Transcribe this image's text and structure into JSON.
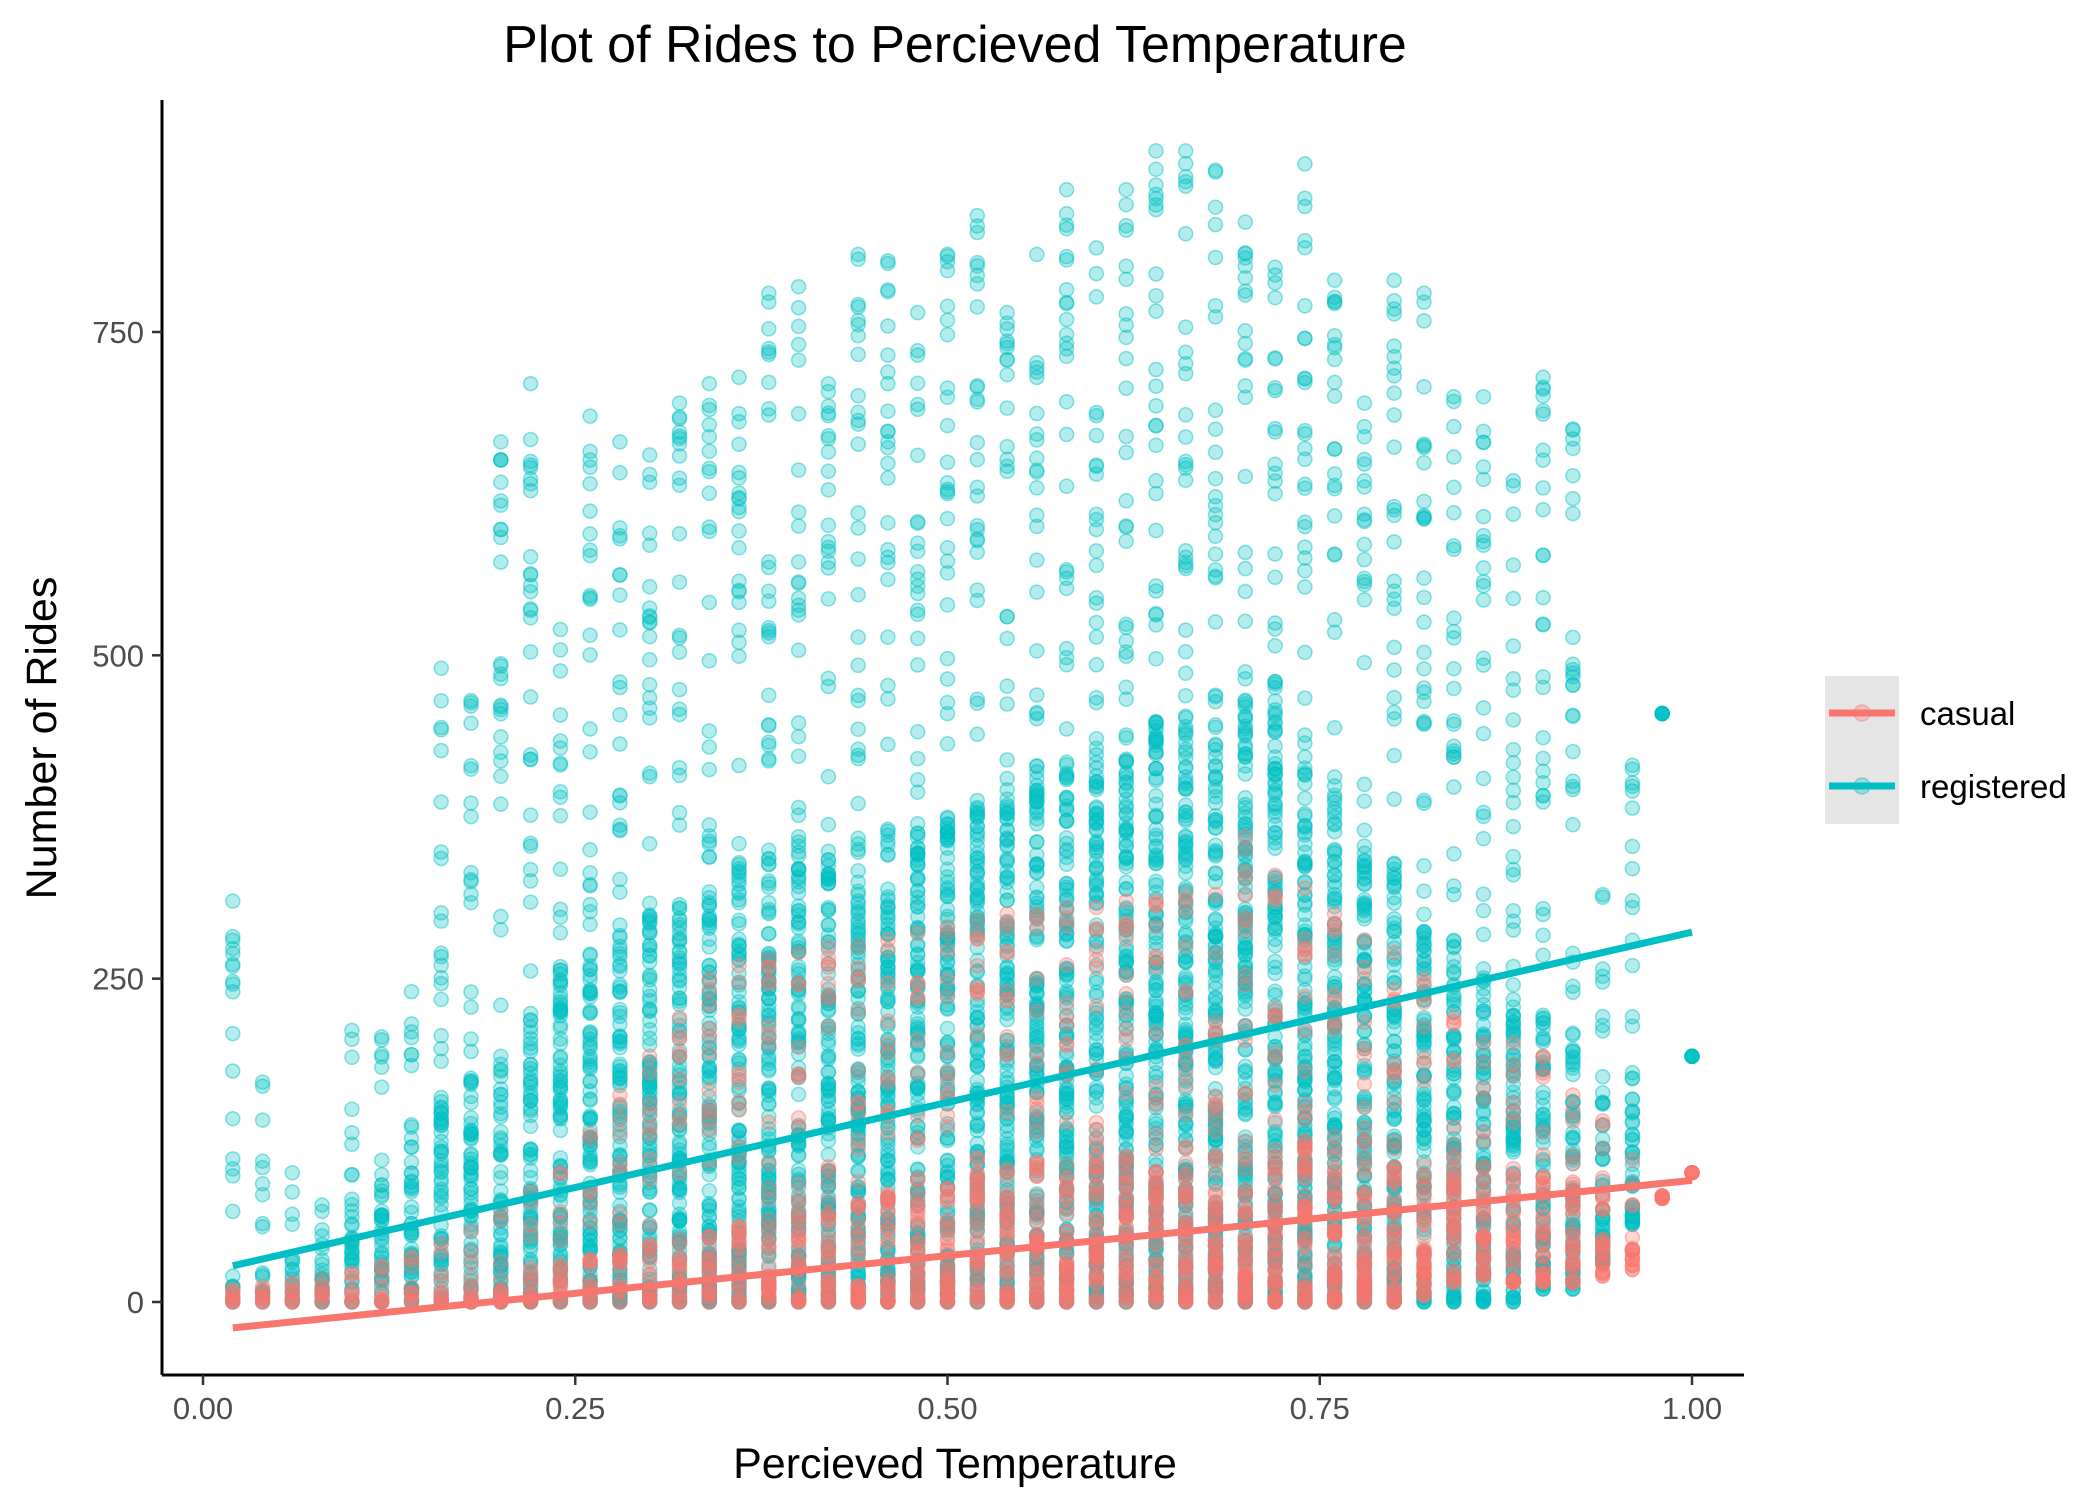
{
  "chart_data": {
    "type": "scatter",
    "title": "Plot of Rides to Percieved Temperature",
    "xlabel": "Percieved Temperature",
    "ylabel": "Number of Rides",
    "xlim": [
      -0.03,
      1.05
    ],
    "ylim": [
      -65,
      895
    ],
    "x_ticks": [
      0.0,
      0.25,
      0.5,
      0.75,
      1.0
    ],
    "x_tick_labels": [
      "0.00",
      "0.25",
      "0.50",
      "0.75",
      "1.00"
    ],
    "y_ticks": [
      0,
      250,
      500,
      750
    ],
    "y_tick_labels": [
      "0",
      "250",
      "500",
      "750"
    ],
    "grid": false,
    "legend_position": "right",
    "point_alpha": 0.3,
    "series": [
      {
        "name": "casual",
        "color": "#F8766D",
        "trend_line": {
          "x": [
            0.02,
            1.0
          ],
          "y": [
            -20,
            94
          ]
        },
        "column_x": [
          0.02,
          0.04,
          0.06,
          0.08,
          0.1,
          0.12,
          0.14,
          0.16,
          0.18,
          0.2,
          0.22,
          0.24,
          0.26,
          0.28,
          0.3,
          0.32,
          0.34,
          0.36,
          0.38,
          0.4,
          0.42,
          0.44,
          0.46,
          0.48,
          0.5,
          0.52,
          0.54,
          0.56,
          0.58,
          0.6,
          0.62,
          0.64,
          0.66,
          0.68,
          0.7,
          0.72,
          0.74,
          0.76,
          0.78,
          0.8,
          0.82,
          0.84,
          0.86,
          0.88,
          0.9,
          0.92,
          0.94,
          0.96,
          0.98,
          1.0
        ],
        "column_min": [
          0,
          0,
          0,
          0,
          0,
          0,
          0,
          0,
          0,
          0,
          0,
          0,
          0,
          0,
          0,
          0,
          0,
          0,
          0,
          0,
          0,
          0,
          0,
          0,
          0,
          0,
          0,
          0,
          0,
          0,
          0,
          0,
          0,
          0,
          0,
          0,
          0,
          0,
          0,
          0,
          5,
          15,
          20,
          15,
          15,
          15,
          20,
          25,
          80,
          100
        ],
        "column_dense_max": [
          5,
          6,
          8,
          10,
          12,
          14,
          16,
          18,
          22,
          26,
          30,
          32,
          36,
          40,
          45,
          50,
          55,
          60,
          65,
          70,
          75,
          80,
          85,
          90,
          95,
          100,
          105,
          110,
          112,
          115,
          118,
          120,
          122,
          124,
          126,
          128,
          130,
          130,
          128,
          125,
          120,
          115,
          110,
          105,
          100,
          95,
          85,
          60,
          82,
          100
        ],
        "column_max": [
          10,
          12,
          15,
          18,
          22,
          28,
          35,
          45,
          55,
          70,
          85,
          100,
          130,
          160,
          190,
          220,
          250,
          260,
          265,
          270,
          275,
          275,
          280,
          285,
          290,
          295,
          300,
          300,
          305,
          305,
          310,
          310,
          315,
          315,
          360,
          330,
          320,
          300,
          280,
          270,
          250,
          220,
          200,
          200,
          190,
          160,
          140,
          110,
          82,
          100
        ]
      },
      {
        "name": "registered",
        "color": "#00BFC4",
        "trend_line": {
          "x": [
            0.02,
            1.0
          ],
          "y": [
            28,
            286
          ]
        },
        "column_x": [
          0.02,
          0.04,
          0.06,
          0.08,
          0.1,
          0.12,
          0.14,
          0.16,
          0.18,
          0.2,
          0.22,
          0.24,
          0.26,
          0.28,
          0.3,
          0.32,
          0.34,
          0.36,
          0.38,
          0.4,
          0.42,
          0.44,
          0.46,
          0.48,
          0.5,
          0.52,
          0.54,
          0.56,
          0.58,
          0.6,
          0.62,
          0.64,
          0.66,
          0.68,
          0.7,
          0.72,
          0.74,
          0.76,
          0.78,
          0.8,
          0.82,
          0.84,
          0.86,
          0.88,
          0.9,
          0.92,
          0.94,
          0.96,
          0.98,
          1.0
        ],
        "column_min": [
          0,
          0,
          0,
          0,
          0,
          0,
          0,
          0,
          0,
          0,
          0,
          0,
          0,
          0,
          0,
          0,
          0,
          0,
          0,
          0,
          0,
          0,
          0,
          0,
          0,
          0,
          0,
          0,
          0,
          0,
          0,
          0,
          0,
          0,
          0,
          0,
          0,
          0,
          0,
          0,
          0,
          0,
          0,
          0,
          10,
          10,
          30,
          60,
          455,
          190
        ],
        "column_dense_max": [
          20,
          25,
          40,
          55,
          80,
          110,
          140,
          160,
          175,
          200,
          230,
          260,
          280,
          300,
          310,
          320,
          330,
          340,
          345,
          350,
          355,
          360,
          365,
          370,
          380,
          390,
          400,
          410,
          420,
          430,
          440,
          450,
          455,
          460,
          470,
          480,
          440,
          400,
          370,
          340,
          300,
          280,
          260,
          240,
          220,
          200,
          160,
          180,
          455,
          190
        ],
        "column_max": [
          310,
          170,
          100,
          75,
          210,
          205,
          240,
          490,
          465,
          665,
          710,
          520,
          685,
          665,
          655,
          695,
          710,
          715,
          780,
          785,
          710,
          810,
          805,
          765,
          810,
          840,
          765,
          810,
          860,
          815,
          860,
          890,
          890,
          875,
          835,
          800,
          880,
          790,
          695,
          790,
          780,
          700,
          700,
          635,
          715,
          675,
          315,
          415,
          455,
          190
        ]
      }
    ],
    "legend": {
      "entries": [
        {
          "label": "casual",
          "color": "#F8766D"
        },
        {
          "label": "registered",
          "color": "#00BFC4"
        }
      ]
    }
  }
}
